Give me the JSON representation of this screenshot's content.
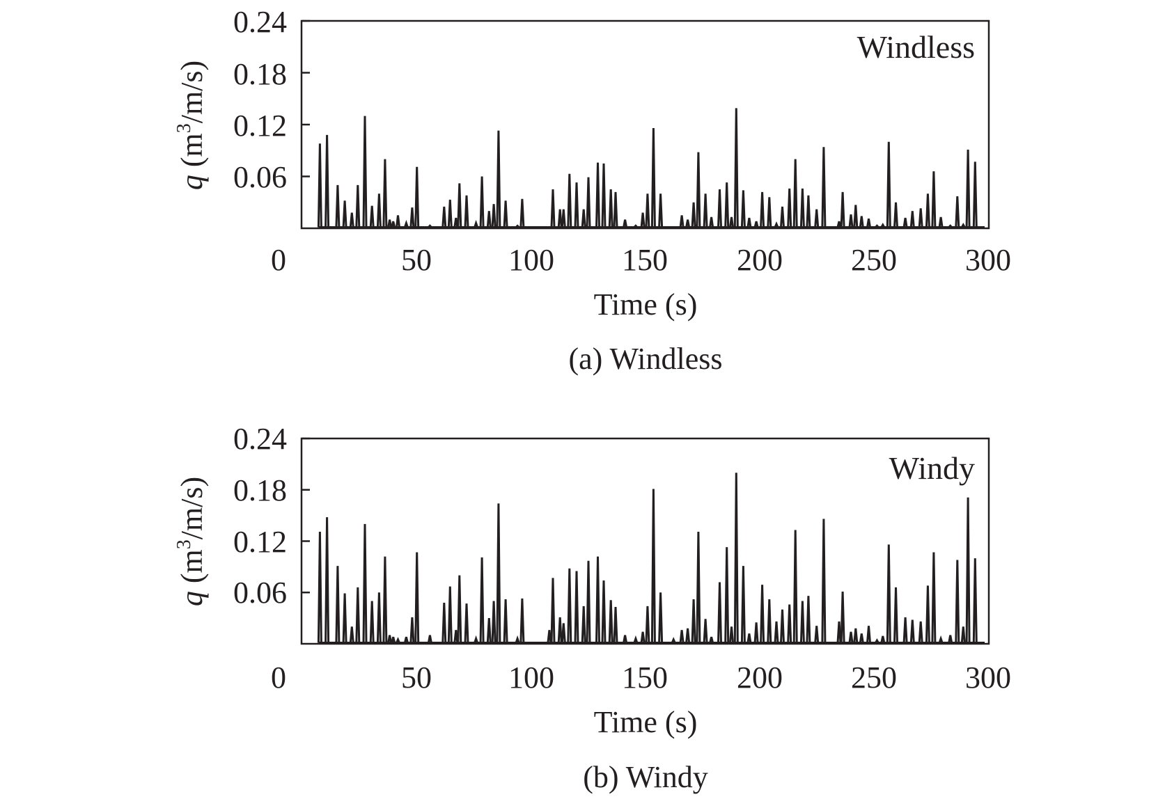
{
  "chart_data": [
    {
      "type": "line",
      "panel": "a",
      "inset_label": "Windless",
      "caption": "(a) Windless",
      "xlabel": "Time (s)",
      "ylabel_var": "q",
      "ylabel_pre": " (m",
      "ylabel_sup": "3",
      "ylabel_post": "/m/s)",
      "xlim": [
        0,
        300
      ],
      "ylim": [
        0,
        0.24
      ],
      "xticks": [
        0,
        50,
        100,
        150,
        200,
        250,
        300
      ],
      "xtick_labels": [
        "0",
        "50",
        "100",
        "150",
        "200",
        "250",
        "300"
      ],
      "yticks": [
        0.06,
        0.12,
        0.18,
        0.24
      ],
      "ytick_labels": [
        "0.06",
        "0.12",
        "0.18",
        "0.24"
      ],
      "grid": false,
      "series": [
        {
          "peaks": [
            [
              17.5,
              0.098
            ],
            [
              20.5,
              0.108
            ],
            [
              25,
              0.05
            ],
            [
              28,
              0.032
            ],
            [
              31,
              0.018
            ],
            [
              33.5,
              0.05
            ],
            [
              36.5,
              0.13
            ],
            [
              39.5,
              0.026
            ],
            [
              42.5,
              0.04
            ],
            [
              45,
              0.08
            ],
            [
              47,
              0.01
            ],
            [
              48.5,
              0.008
            ],
            [
              50.5,
              0.015
            ],
            [
              54,
              0.006
            ],
            [
              56.5,
              0.024
            ],
            [
              58.5,
              0.071
            ],
            [
              64,
              0.003
            ],
            [
              70,
              0.025
            ],
            [
              72.5,
              0.033
            ],
            [
              75,
              0.012
            ],
            [
              76.5,
              0.052
            ],
            [
              79.5,
              0.038
            ],
            [
              83.5,
              0.006
            ],
            [
              86,
              0.06
            ],
            [
              89,
              0.02
            ],
            [
              91,
              0.028
            ],
            [
              93,
              0.113
            ],
            [
              96,
              0.032
            ],
            [
              101,
              0.002
            ],
            [
              103,
              0.034
            ],
            [
              116,
              0.045
            ],
            [
              119,
              0.022
            ],
            [
              120.5,
              0.022
            ],
            [
              123,
              0.063
            ],
            [
              126,
              0.053
            ],
            [
              129,
              0.022
            ],
            [
              131,
              0.059
            ],
            [
              135,
              0.076
            ],
            [
              137.5,
              0.075
            ],
            [
              140.5,
              0.045
            ],
            [
              142.5,
              0.042
            ],
            [
              146.5,
              0.01
            ],
            [
              151,
              0.003
            ],
            [
              154,
              0.018
            ],
            [
              156,
              0.04
            ],
            [
              158.5,
              0.116
            ],
            [
              161.5,
              0.04
            ],
            [
              170.5,
              0.015
            ],
            [
              173,
              0.01
            ],
            [
              175.5,
              0.03
            ],
            [
              177.5,
              0.088
            ],
            [
              180.5,
              0.04
            ],
            [
              183,
              0.013
            ],
            [
              186.5,
              0.045
            ],
            [
              189.5,
              0.053
            ],
            [
              191.5,
              0.013
            ],
            [
              193.5,
              0.139
            ],
            [
              196.5,
              0.044
            ],
            [
              199,
              0.012
            ],
            [
              202,
              0.008
            ],
            [
              204.5,
              0.042
            ],
            [
              207.5,
              0.036
            ],
            [
              210.5,
              0.005
            ],
            [
              213,
              0.025
            ],
            [
              216,
              0.046
            ],
            [
              218.5,
              0.08
            ],
            [
              221.5,
              0.046
            ],
            [
              224,
              0.038
            ],
            [
              227.5,
              0.022
            ],
            [
              230.5,
              0.094
            ],
            [
              237,
              0.008
            ],
            [
              238.5,
              0.042
            ],
            [
              242,
              0.016
            ],
            [
              244,
              0.027
            ],
            [
              246.5,
              0.014
            ],
            [
              249.5,
              0.011
            ],
            [
              253,
              0.003
            ],
            [
              255.5,
              0.004
            ],
            [
              258,
              0.1
            ],
            [
              261,
              0.03
            ],
            [
              265,
              0.012
            ],
            [
              268,
              0.02
            ],
            [
              271.5,
              0.023
            ],
            [
              274.5,
              0.04
            ],
            [
              277,
              0.066
            ],
            [
              280,
              0.013
            ],
            [
              284,
              0.003
            ],
            [
              287,
              0.037
            ],
            [
              289.5,
              0.004
            ],
            [
              291.5,
              0.091
            ],
            [
              294.5,
              0.077
            ]
          ]
        }
      ]
    },
    {
      "type": "line",
      "panel": "b",
      "inset_label": "Windy",
      "caption": "(b) Windy",
      "xlabel": "Time (s)",
      "ylabel_var": "q",
      "ylabel_pre": " (m",
      "ylabel_sup": "3",
      "ylabel_post": "/m/s)",
      "xlim": [
        0,
        300
      ],
      "ylim": [
        0,
        0.24
      ],
      "xticks": [
        0,
        50,
        100,
        150,
        200,
        250,
        300
      ],
      "xtick_labels": [
        "0",
        "50",
        "100",
        "150",
        "200",
        "250",
        "300"
      ],
      "yticks": [
        0.06,
        0.12,
        0.18,
        0.24
      ],
      "ytick_labels": [
        "0.06",
        "0.12",
        "0.18",
        "0.24"
      ],
      "grid": false,
      "series": [
        {
          "peaks": [
            [
              17.5,
              0.131
            ],
            [
              20.5,
              0.148
            ],
            [
              25,
              0.091
            ],
            [
              28,
              0.059
            ],
            [
              31,
              0.02
            ],
            [
              33.5,
              0.066
            ],
            [
              36.5,
              0.14
            ],
            [
              39.5,
              0.05
            ],
            [
              42.5,
              0.06
            ],
            [
              45,
              0.102
            ],
            [
              47,
              0.01
            ],
            [
              48.5,
              0.008
            ],
            [
              50.5,
              0.005
            ],
            [
              54,
              0.008
            ],
            [
              56.5,
              0.031
            ],
            [
              58.5,
              0.107
            ],
            [
              64,
              0.01
            ],
            [
              70,
              0.048
            ],
            [
              72.5,
              0.067
            ],
            [
              75,
              0.016
            ],
            [
              76.5,
              0.08
            ],
            [
              79.5,
              0.047
            ],
            [
              83.5,
              0.006
            ],
            [
              86,
              0.101
            ],
            [
              89,
              0.03
            ],
            [
              91,
              0.05
            ],
            [
              93,
              0.164
            ],
            [
              96,
              0.052
            ],
            [
              101,
              0.006
            ],
            [
              103,
              0.053
            ],
            [
              114.5,
              0.016
            ],
            [
              116,
              0.077
            ],
            [
              119,
              0.031
            ],
            [
              120.5,
              0.024
            ],
            [
              123,
              0.088
            ],
            [
              126,
              0.085
            ],
            [
              129,
              0.044
            ],
            [
              131,
              0.097
            ],
            [
              135,
              0.102
            ],
            [
              137.5,
              0.074
            ],
            [
              140.5,
              0.051
            ],
            [
              142.5,
              0.043
            ],
            [
              146.5,
              0.01
            ],
            [
              151,
              0.006
            ],
            [
              154,
              0.014
            ],
            [
              156,
              0.044
            ],
            [
              158.5,
              0.181
            ],
            [
              161.5,
              0.06
            ],
            [
              167,
              0.005
            ],
            [
              170.5,
              0.016
            ],
            [
              173,
              0.018
            ],
            [
              175.5,
              0.052
            ],
            [
              177.5,
              0.131
            ],
            [
              180.5,
              0.029
            ],
            [
              183,
              0.008
            ],
            [
              186.5,
              0.072
            ],
            [
              189.5,
              0.113
            ],
            [
              191.5,
              0.02
            ],
            [
              193.5,
              0.2
            ],
            [
              196.5,
              0.091
            ],
            [
              199,
              0.012
            ],
            [
              202,
              0.025
            ],
            [
              204.5,
              0.069
            ],
            [
              207.5,
              0.052
            ],
            [
              210.5,
              0.026
            ],
            [
              213,
              0.04
            ],
            [
              216,
              0.046
            ],
            [
              218.5,
              0.133
            ],
            [
              221.5,
              0.05
            ],
            [
              224,
              0.056
            ],
            [
              227.5,
              0.021
            ],
            [
              230.5,
              0.146
            ],
            [
              237,
              0.026
            ],
            [
              238.5,
              0.061
            ],
            [
              242,
              0.014
            ],
            [
              244,
              0.018
            ],
            [
              246.5,
              0.012
            ],
            [
              249.5,
              0.021
            ],
            [
              253,
              0.004
            ],
            [
              255.5,
              0.009
            ],
            [
              258,
              0.116
            ],
            [
              261,
              0.066
            ],
            [
              265,
              0.031
            ],
            [
              268,
              0.028
            ],
            [
              271.5,
              0.026
            ],
            [
              274.5,
              0.068
            ],
            [
              277,
              0.107
            ],
            [
              280,
              0.006
            ],
            [
              284,
              0.01
            ],
            [
              287,
              0.098
            ],
            [
              289.5,
              0.02
            ],
            [
              291.5,
              0.171
            ],
            [
              294.5,
              0.1
            ]
          ]
        }
      ]
    }
  ]
}
